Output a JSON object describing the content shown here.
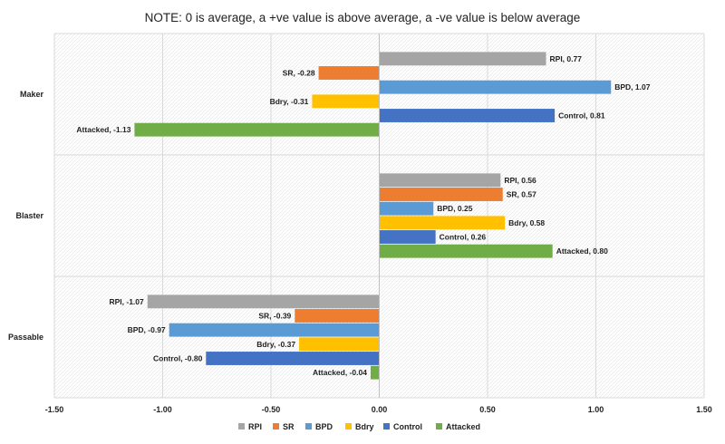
{
  "chart_data": {
    "type": "bar",
    "orientation": "horizontal",
    "title": "NOTE: 0 is average, a +ve value is above average, a -ve value is below average",
    "xlabel": "",
    "ylabel": "",
    "xlim": [
      -1.5,
      1.5
    ],
    "x_ticks": [
      "-1.50",
      "-1.00",
      "-0.50",
      "0.00",
      "0.50",
      "1.00",
      "1.50"
    ],
    "grid": true,
    "legend_position": "bottom",
    "categories": [
      "Maker",
      "Blaster",
      "Passable"
    ],
    "series": [
      {
        "name": "RPI",
        "color": "#A5A5A5",
        "values": [
          0.77,
          0.56,
          -1.07
        ],
        "labels": [
          "RPI, 0.77",
          "RPI, 0.56",
          "RPI, -1.07"
        ]
      },
      {
        "name": "SR",
        "color": "#ED7D31",
        "values": [
          -0.28,
          0.57,
          -0.39
        ],
        "labels": [
          "SR, -0.28",
          "SR, 0.57",
          "SR, -0.39"
        ]
      },
      {
        "name": "BPD",
        "color": "#5B9BD5",
        "values": [
          1.07,
          0.25,
          -0.97
        ],
        "labels": [
          "BPD, 1.07",
          "BPD, 0.25",
          "BPD, -0.97"
        ]
      },
      {
        "name": "Bdry",
        "color": "#FFC000",
        "values": [
          -0.31,
          0.58,
          -0.37
        ],
        "labels": [
          "Bdry, -0.31",
          "Bdry, 0.58",
          "Bdry, -0.37"
        ]
      },
      {
        "name": "Control",
        "color": "#4472C4",
        "values": [
          0.81,
          0.26,
          -0.8
        ],
        "labels": [
          "Control, 0.81",
          "Control, 0.26",
          "Control, -0.80"
        ]
      },
      {
        "name": "Attacked",
        "color": "#70AD47",
        "values": [
          -1.13,
          0.8,
          -0.04
        ],
        "labels": [
          "Attacked, -1.13",
          "Attacked, 0.80",
          "Attacked, -0.04"
        ]
      }
    ]
  }
}
